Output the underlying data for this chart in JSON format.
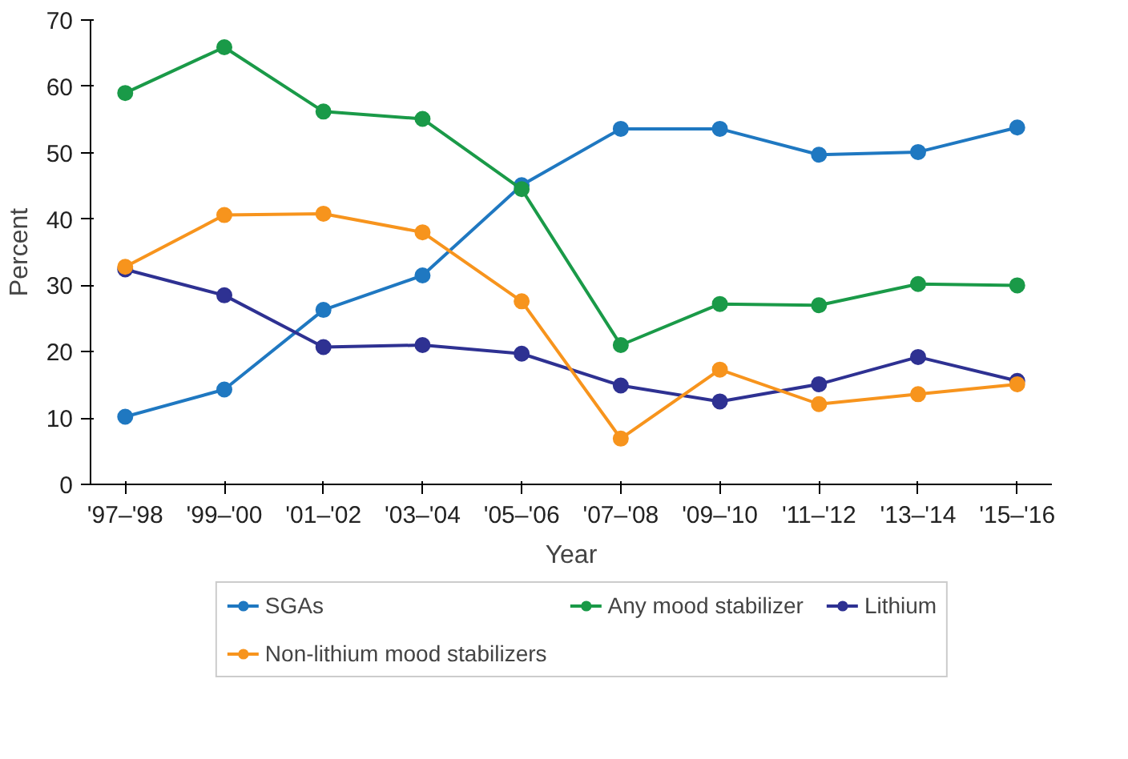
{
  "chart_data": {
    "type": "line",
    "xlabel": "Year",
    "ylabel": "Percent",
    "categories": [
      "'97–'98",
      "'99–'00",
      "'01–'02",
      "'03–'04",
      "'05–'06",
      "'07–'08",
      "'09–'10",
      "'11–'12",
      "'13–'14",
      "'15–'16"
    ],
    "series": [
      {
        "name": "SGAs",
        "color": "#1f78c1",
        "values": [
          10.2,
          14.3,
          26.3,
          31.5,
          45.1,
          53.6,
          53.6,
          49.7,
          50.1,
          53.8
        ]
      },
      {
        "name": "Any mood stabilizer",
        "color": "#1a9a48",
        "values": [
          59,
          65.9,
          56.2,
          55.1,
          44.5,
          21,
          27.2,
          27,
          30.2,
          30
        ]
      },
      {
        "name": "Lithium",
        "color": "#2e3192",
        "values": [
          32.4,
          28.5,
          20.7,
          21,
          19.7,
          14.9,
          12.5,
          15.1,
          19.2,
          15.6
        ]
      },
      {
        "name": "Non-lithium mood stabilizers",
        "color": "#f7941d",
        "values": [
          32.8,
          40.6,
          40.8,
          38,
          27.6,
          6.9,
          17.3,
          12.1,
          13.6,
          15.1
        ]
      }
    ],
    "ylim": [
      0,
      70
    ],
    "yticks": [
      0,
      10,
      20,
      30,
      40,
      50,
      60,
      70
    ],
    "grid": false,
    "legend": "bottom",
    "marker": "circle",
    "line_style": "solid"
  }
}
